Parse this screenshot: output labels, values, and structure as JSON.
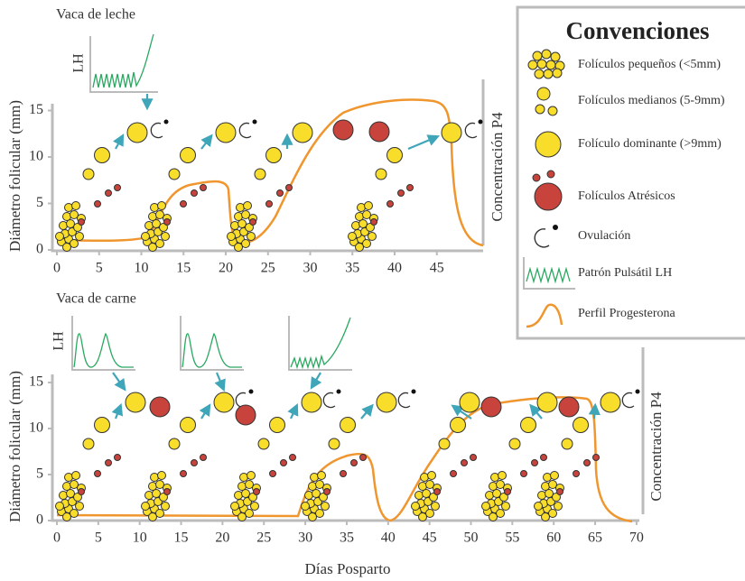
{
  "panels": [
    {
      "title": "Vaca de leche",
      "y_label": "Diámetro folicular (mm)",
      "y2_label": "Concentración P4",
      "lh_label": "LH",
      "xticks": [
        0,
        5,
        10,
        15,
        20,
        25,
        30,
        35,
        40,
        45
      ],
      "yticks": [
        0,
        5,
        10,
        15
      ]
    },
    {
      "title": "Vaca de carne",
      "y_label": "Diámetro folicular (mm)",
      "y2_label": "Concentración P4",
      "lh_label": "LH",
      "xticks": [
        0,
        5,
        10,
        15,
        20,
        25,
        30,
        35,
        40,
        45,
        50,
        55,
        60,
        65,
        70
      ],
      "yticks": [
        0,
        5,
        10,
        15
      ]
    }
  ],
  "x_label": "Días Posparto",
  "legend": {
    "title": "Convenciones",
    "items": [
      "Folículos pequeños (<5mm)",
      "Folículos medianos (5-9mm)",
      "Folículo dominante (>9mm)",
      "Folículos Atrésicos",
      "Ovulación",
      "Patrón Pulsátil LH",
      "Perfil Progesterona"
    ]
  }
}
